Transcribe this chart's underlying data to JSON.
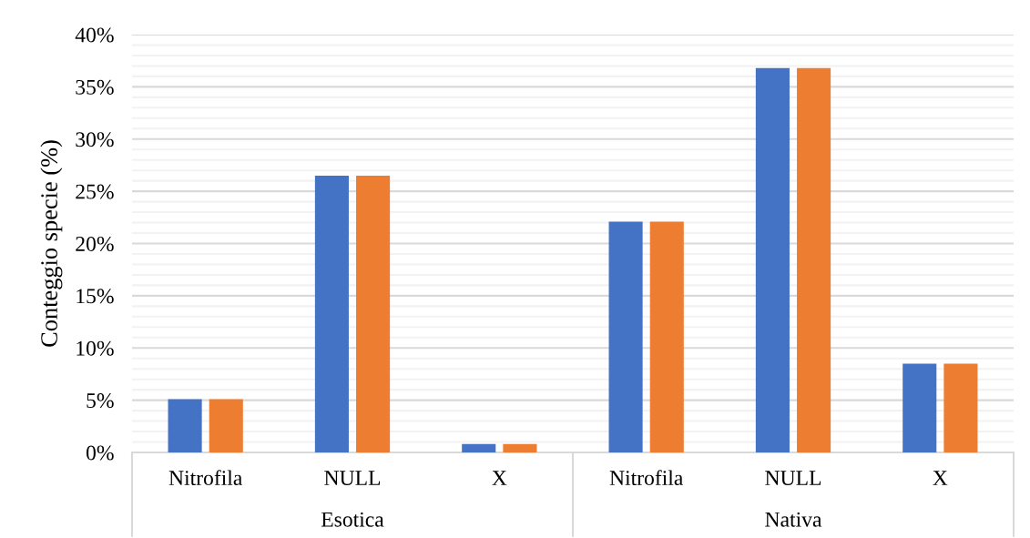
{
  "chart_data": {
    "type": "bar",
    "ylabel": "Conteggio specie (%)",
    "categories": [
      "Nitrofila",
      "NULL",
      "X",
      "Nitrofila",
      "NULL",
      "X"
    ],
    "series": [
      {
        "color": "#4472c4",
        "values": [
          5.1,
          26.5,
          0.8,
          22.1,
          36.8,
          8.5
        ]
      },
      {
        "color": "#ed7d31",
        "values": [
          5.1,
          26.5,
          0.8,
          22.1,
          36.8,
          8.5
        ]
      }
    ],
    "annotations": [
      "Esotica",
      "Nativa"
    ],
    "ylim": [
      0,
      40
    ],
    "yticks": [
      {
        "value": 0,
        "label": "0%"
      },
      {
        "value": 1,
        "label": null
      },
      {
        "value": 2,
        "label": null
      },
      {
        "value": 3,
        "label": null
      },
      {
        "value": 4,
        "label": null
      },
      {
        "value": 5,
        "label": "5%"
      },
      {
        "value": 6,
        "label": null
      },
      {
        "value": 7,
        "label": null
      },
      {
        "value": 8,
        "label": null
      },
      {
        "value": 9,
        "label": null
      },
      {
        "value": 10,
        "label": "10%"
      },
      {
        "value": 11,
        "label": null
      },
      {
        "value": 12,
        "label": null
      },
      {
        "value": 13,
        "label": null
      },
      {
        "value": 14,
        "label": null
      },
      {
        "value": 15,
        "label": "15%"
      },
      {
        "value": 16,
        "label": null
      },
      {
        "value": 17,
        "label": null
      },
      {
        "value": 18,
        "label": null
      },
      {
        "value": 19,
        "label": null
      },
      {
        "value": 20,
        "label": "20%"
      },
      {
        "value": 21,
        "label": null
      },
      {
        "value": 22,
        "label": null
      },
      {
        "value": 23,
        "label": null
      },
      {
        "value": 24,
        "label": null
      },
      {
        "value": 25,
        "label": "25%"
      },
      {
        "value": 26,
        "label": null
      },
      {
        "value": 27,
        "label": null
      },
      {
        "value": 28,
        "label": null
      },
      {
        "value": 29,
        "label": null
      },
      {
        "value": 30,
        "label": "30%"
      },
      {
        "value": 31,
        "label": null
      },
      {
        "value": 32,
        "label": null
      },
      {
        "value": 33,
        "label": null
      },
      {
        "value": 34,
        "label": null
      },
      {
        "value": 35,
        "label": "35%"
      },
      {
        "value": 36,
        "label": null
      },
      {
        "value": 37,
        "label": null
      },
      {
        "value": 38,
        "label": null
      },
      {
        "value": 39,
        "label": null
      },
      {
        "value": 40,
        "label": "40%"
      }
    ],
    "grid": "y"
  }
}
